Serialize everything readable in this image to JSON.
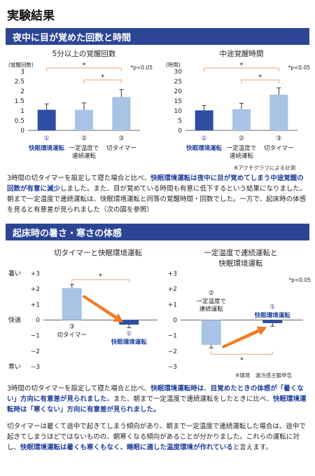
{
  "page": {
    "title": "実験結果",
    "section1": "夜中に目が覚めた回数と時間",
    "section2": "起床時の暑さ・寒さの体感",
    "note1": "※アクチグラフによる計測",
    "note2": "※環境　温冷感主観申告"
  },
  "colors": {
    "dark_bar": "#2c4fa3",
    "light_bar": "#a9c3e6",
    "bracket": "#e8a070",
    "arrow": "#ef7e24",
    "blue_text": "#1f3f9c",
    "section_bg": "#2c4595"
  },
  "chart_data": [
    {
      "type": "bar",
      "title": "5分以上の覚醒回数",
      "unit_label": "(覚醒回数)",
      "p_label": "*p<0.05",
      "ylim": [
        0,
        3
      ],
      "yticks": [
        "0",
        "0.5",
        "1",
        "1.5",
        "2",
        "2.5",
        "3"
      ],
      "categories": [
        {
          "num": "①",
          "label": "快眠環境運転"
        },
        {
          "num": "②",
          "label": "一定温度で\n連続運転"
        },
        {
          "num": "③",
          "label": "切タイマー"
        }
      ],
      "values": [
        1.05,
        1.05,
        1.7
      ],
      "errors": [
        0.3,
        0.35,
        0.38
      ],
      "sig_markers": [
        "*",
        "*"
      ]
    },
    {
      "type": "bar",
      "title": "中途覚醒時間",
      "unit_label": "(時間)",
      "p_label": "*p<0.05",
      "ylim": [
        0,
        30
      ],
      "yticks": [
        "0",
        "5",
        "10",
        "15",
        "20",
        "25",
        "30"
      ],
      "categories": [
        {
          "num": "①",
          "label": "快眠環境運転"
        },
        {
          "num": "②",
          "label": "一定温度で\n連続運転"
        },
        {
          "num": "③",
          "label": "切タイマー"
        }
      ],
      "values": [
        10.2,
        10.8,
        18.2
      ],
      "errors": [
        2.5,
        3.0,
        3.5
      ],
      "sig_markers": [
        "*",
        "*"
      ]
    },
    {
      "type": "bar",
      "title": "切タイマーと快眠環境運転",
      "ylim": [
        -3,
        3
      ],
      "yticks": [
        "−3",
        "−2",
        "−1",
        "0",
        "+1",
        "+2",
        "+3"
      ],
      "y_words": {
        "top": "暑い",
        "middle": "快適",
        "bottom": "寒い"
      },
      "categories": [
        {
          "num": "③",
          "label": "切タイマー"
        },
        {
          "num": "①",
          "label": "快眠環境運転"
        }
      ],
      "values": [
        2.05,
        -0.3
      ],
      "errors": [
        0.25,
        0.2
      ],
      "sig_markers": [
        "*"
      ]
    },
    {
      "type": "bar",
      "title": "一定温度で連続運転と\n快眠環境運転",
      "p_label": "*p<0.05",
      "ylim": [
        -3,
        3
      ],
      "yticks": [
        "−3",
        "−2",
        "−1",
        "0",
        "+1",
        "+2",
        "+3"
      ],
      "categories": [
        {
          "num": "②",
          "label": "一定温度で\n連続運転"
        },
        {
          "num": "①",
          "label": "快眠環境運転"
        }
      ],
      "values": [
        -1.6,
        -0.2
      ],
      "errors": [
        0.2,
        0.2
      ],
      "sig_markers": [
        "*"
      ]
    }
  ],
  "paragraphs": {
    "p1": [
      {
        "t": "3時間の切タイマーを設定して寝た場合と比べ、",
        "b": false
      },
      {
        "t": "快眠環境運転は夜中に目が覚めてしまう中途覚醒の回数が有意に減少",
        "b": true
      },
      {
        "t": "しました。また、目が覚めている時間も有意に低下するという結果になりました。朝まで一定温度で連続運転は、快眠環境運転と同等の覚醒時間・回数でした。一方で、起床時の体感を見ると有意差が見られました（次の図を参照）",
        "b": false
      }
    ],
    "p2": [
      {
        "t": "3時間の切タイマーを設定して寝た場合と比べ、",
        "b": false
      },
      {
        "t": "快眠環境運転時は",
        "b": true
      },
      {
        "t": "、",
        "b": false
      },
      {
        "t": "目覚めたときの体感が「暑くない」方向に有意差が見られました",
        "b": true
      },
      {
        "t": "。また、朝まで一定温度で連続運転をしたときに比べ、",
        "b": false
      },
      {
        "t": "快眠環境運転時は「寒くない」方向に有意差が見られました。",
        "b": true
      }
    ],
    "p3": [
      {
        "t": "切タイマーは暑くて途中で起きてしまう傾向があり、朝まで一定温度で連続運転した場合は、途中で起きてしまうほどではないものの、朝寒くなる傾向があることが分かりました。これらの運転に対し、",
        "b": false
      },
      {
        "t": "快眠環境運転は暑くも寒くもなく、睡眠に適した温度環境が作れている",
        "b": true
      },
      {
        "t": "と言えます。",
        "b": false
      }
    ]
  }
}
